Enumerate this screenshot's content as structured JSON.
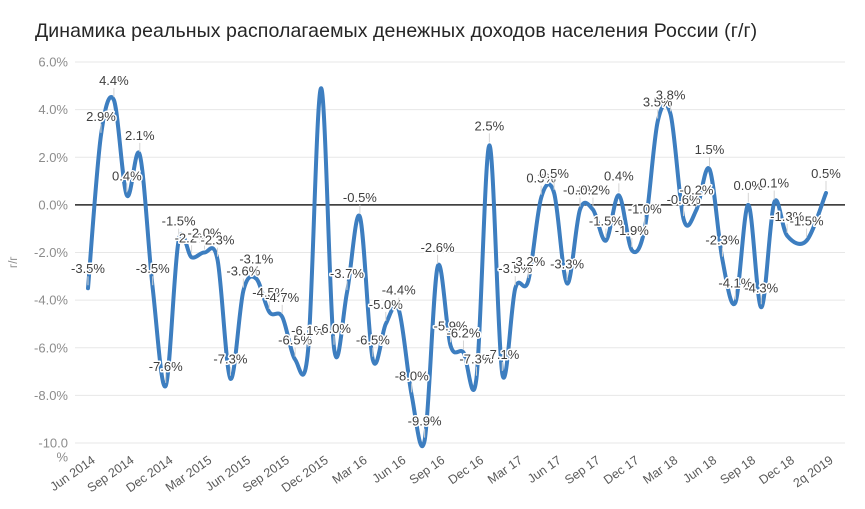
{
  "title": "Динамика реальных располагаемых денежных доходов населения России (г/г)",
  "chart_data": {
    "type": "line",
    "title": "Динамика реальных располагаемых денежных доходов населения России (г/г)",
    "y_axis_title": "г/г",
    "ylim": [
      -10,
      6
    ],
    "y_tick_step": 2,
    "grid": true,
    "legend_position": "none",
    "line_color": "#3D7EC0",
    "zero_line_color": "#262626",
    "grid_color": "#e7e7e7",
    "label_color": "#3f3f3f",
    "tick_color": "#8c8c8c",
    "y_tick_labels": [
      "6.0%",
      "4.0%",
      "2.0%",
      "0.0%",
      "-2.0%",
      "-4.0%",
      "-6.0%",
      "-8.0%",
      "-10.0\n%"
    ],
    "x_tick_labels": [
      "Jun 2014",
      "Sep 2014",
      "Dec 2014",
      "Mar 2015",
      "Jun 2015",
      "Sep 2015",
      "Dec 2015",
      "Mar 16",
      "Jun 16",
      "Sep 16",
      "Dec 16",
      "Mar 17",
      "Jun 17",
      "Sep 17",
      "Dec 17",
      "Mar 18",
      "Jun 18",
      "Sep 18",
      "Dec 18",
      "2q 2019"
    ],
    "series": [
      {
        "x": [
          "Jun 2014",
          "Jul 2014",
          "Aug 2014",
          "Sep 2014",
          "Oct 2014",
          "Nov 2014",
          "Dec 2014",
          "Jan 2015",
          "Feb 2015",
          "Mar 2015",
          "Apr 2015",
          "May 2015",
          "Jun 2015",
          "Jul 2015",
          "Aug 2015",
          "Sep 2015",
          "Oct 2015",
          "Nov 2015",
          "Dec 2015",
          "Jan 2016",
          "Feb 2016",
          "Mar 2016",
          "Apr 2016",
          "May 2016",
          "Jun 2016",
          "Jul 2016",
          "Aug 2016",
          "Sep 2016",
          "Oct 2016",
          "Nov 2016",
          "Dec 2016",
          "Jan 2017",
          "Feb 2017",
          "Mar 2017",
          "Apr 2017",
          "May 2017",
          "Jun 2017",
          "Jul 2017",
          "Aug 2017",
          "Sep 2017",
          "Oct 2017",
          "Nov 2017",
          "Dec 2017",
          "Jan 2018",
          "Feb 2018",
          "Mar 2018",
          "Apr 2018",
          "May 2018",
          "Jun 2018",
          "Jul 2018",
          "Aug 2018",
          "Sep 2018",
          "Oct 2018",
          "Nov 2018",
          "Dec 2018",
          "1q 2019",
          "2q 2019"
        ],
        "values": [
          -3.5,
          2.9,
          4.4,
          0.4,
          2.1,
          -3.5,
          -7.6,
          -1.5,
          -2.2,
          -2.0,
          -2.3,
          -7.3,
          -3.6,
          -3.1,
          -4.5,
          -4.7,
          -6.5,
          -6.1,
          4.9,
          -6.0,
          -3.7,
          -0.5,
          -6.5,
          -5.0,
          -4.4,
          -8.0,
          -9.9,
          -2.6,
          -5.9,
          -6.2,
          -7.3,
          2.5,
          -7.1,
          -3.5,
          -3.2,
          0.3,
          0.5,
          -3.3,
          -0.2,
          -0.2,
          -1.5,
          0.4,
          -1.9,
          -1.0,
          3.5,
          3.8,
          -0.6,
          -0.2,
          1.5,
          -2.3,
          -4.1,
          0.0,
          -4.3,
          0.1,
          -1.3,
          -1.5,
          0.5
        ],
        "point_labels": [
          "-3.5%",
          "2.9%",
          "4.4%",
          "0.4%",
          "2.1%",
          "-3.5%",
          "-7.6%",
          "-1.5%",
          "-2.2%",
          "-2.0%",
          "-2.3%",
          "-7.3%",
          "-3.6%",
          "-3.1%",
          "-4.5%",
          "-4.7%",
          "-6.5%",
          "-6.1%",
          null,
          "-6.0%",
          "-3.7%",
          "-0.5%",
          "-6.5%",
          "-5.0%",
          "-4.4%",
          "-8.0%",
          "-9.9%",
          "-2.6%",
          "-5.9%",
          "-6.2%",
          "-7.3%",
          "2.5%",
          "-7.1%",
          "-3.5%",
          "-3.2%",
          "0.3%",
          "0.5%",
          "-3.3%",
          "-0.2%",
          "-0.2%",
          "-1.5%",
          "0.4%",
          "-1.9%",
          "-1.0%",
          "3.5%",
          "3.8%",
          "-0.6%",
          "-0.2%",
          "1.5%",
          "-2.3%",
          "-4.1%",
          "0.0%",
          "-4.3%",
          "0.1%",
          "-1.3%",
          "-1.5%",
          "0.5%"
        ]
      }
    ]
  }
}
